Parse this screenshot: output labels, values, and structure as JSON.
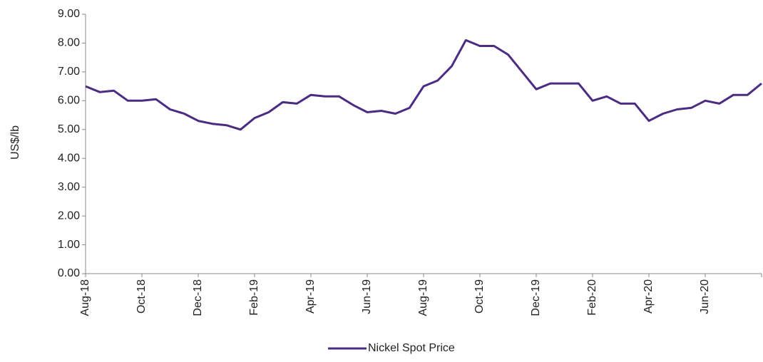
{
  "chart_data": {
    "type": "line",
    "y_label": "US$/lb",
    "x": [
      "Aug-18",
      null,
      null,
      null,
      "Oct-18",
      null,
      null,
      null,
      "Dec-18",
      null,
      null,
      null,
      "Feb-19",
      null,
      null,
      null,
      "Apr-19",
      null,
      null,
      null,
      "Jun-19",
      null,
      null,
      null,
      "Aug-19",
      null,
      null,
      null,
      "Oct-19",
      null,
      null,
      null,
      "Dec-19",
      null,
      null,
      null,
      "Feb-20",
      null,
      null,
      null,
      "Apr-20",
      null,
      null,
      null,
      "Jun-20",
      null,
      null,
      null,
      null
    ],
    "series": [
      {
        "name": "Nickel Spot Price",
        "color": "#4b2c82",
        "values": [
          6.5,
          6.3,
          6.35,
          6.0,
          6.0,
          6.05,
          5.7,
          5.55,
          5.3,
          5.2,
          5.15,
          5.0,
          5.4,
          5.6,
          5.95,
          5.9,
          6.2,
          6.15,
          6.15,
          5.85,
          5.6,
          5.65,
          5.55,
          5.75,
          6.5,
          6.7,
          7.2,
          8.1,
          7.9,
          7.9,
          7.6,
          7.0,
          6.4,
          6.6,
          6.6,
          6.6,
          6.0,
          6.15,
          5.9,
          5.9,
          5.3,
          5.55,
          5.7,
          5.75,
          6.0,
          5.9,
          6.2,
          6.2,
          6.6
        ]
      }
    ],
    "ylim": [
      0,
      9
    ],
    "yticks": [
      {
        "value": 0,
        "label": "0.00"
      },
      {
        "value": 1,
        "label": "1.00"
      },
      {
        "value": 2,
        "label": "2.00"
      },
      {
        "value": 3,
        "label": "3.00"
      },
      {
        "value": 4,
        "label": "4.00"
      },
      {
        "value": 5,
        "label": "5.00"
      },
      {
        "value": 6,
        "label": "6.00"
      },
      {
        "value": 7,
        "label": "7.00"
      },
      {
        "value": 8,
        "label": "8.00"
      },
      {
        "value": 9,
        "label": "9.00"
      }
    ],
    "legend": "bottom"
  }
}
